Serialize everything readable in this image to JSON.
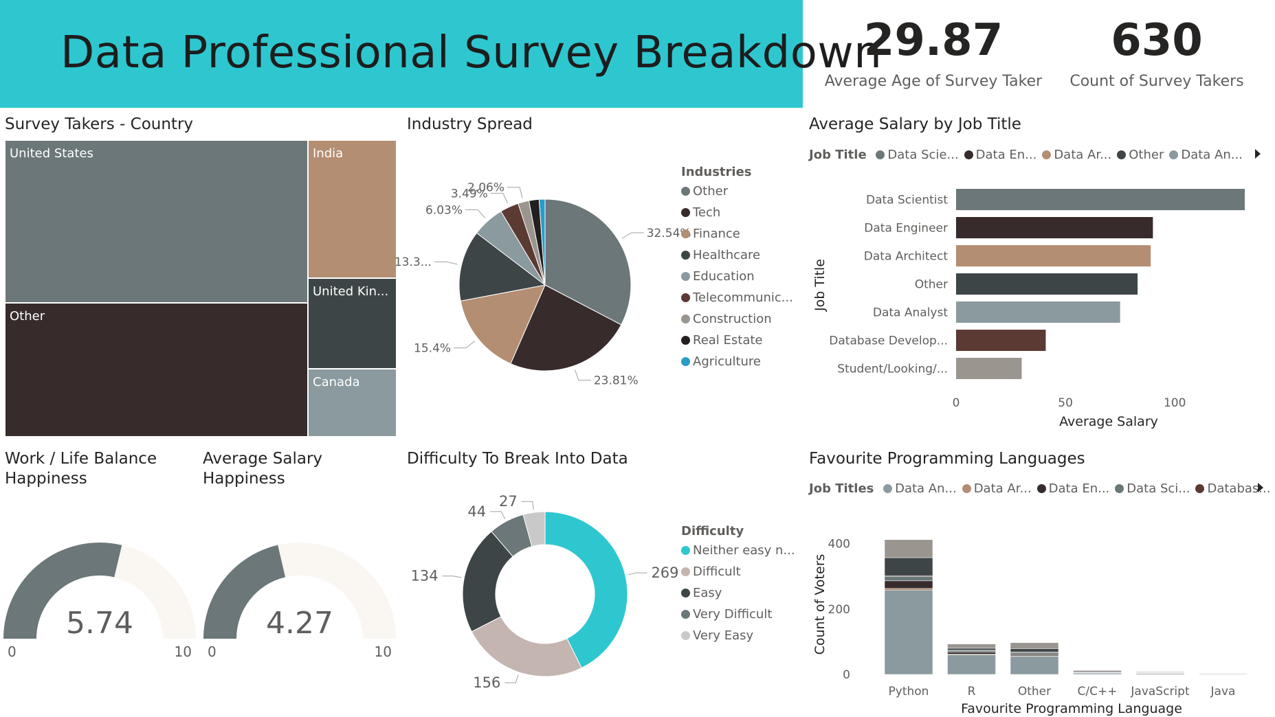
{
  "header": {
    "title": "Data Professional Survey Breakdown"
  },
  "kpis": {
    "avg_age": {
      "value": "29.87",
      "label": "Average Age of Survey Taker"
    },
    "count": {
      "value": "630",
      "label": "Count of Survey Takers"
    }
  },
  "colors": {
    "slate": "#6b7778",
    "dark": "#372b2b",
    "tan": "#b48e72",
    "charcoal": "#3d4547",
    "bluegrey": "#8a9a9e",
    "brown": "#5b3a33",
    "grey": "#9b9590",
    "black": "#231f20",
    "teal": "#2ec7d0",
    "lightpink": "#c4b5b1",
    "lightgrey": "#c9c9c9",
    "cream": "#faf6f1"
  },
  "country": {
    "title": "Survey Takers - Country",
    "cells": [
      {
        "label": "United States",
        "color": "#6b7778"
      },
      {
        "label": "Other",
        "color": "#372b2b"
      },
      {
        "label": "India",
        "color": "#b48e72"
      },
      {
        "label": "United Kin...",
        "color": "#3d4547"
      },
      {
        "label": "Canada",
        "color": "#8a9a9e"
      }
    ]
  },
  "industry": {
    "title": "Industry Spread",
    "legend_title": "Industries",
    "items": [
      {
        "label": "Other",
        "color": "#6b7778"
      },
      {
        "label": "Tech",
        "color": "#372b2b"
      },
      {
        "label": "Finance",
        "color": "#b48e72"
      },
      {
        "label": "Healthcare",
        "color": "#3d4547"
      },
      {
        "label": "Education",
        "color": "#8a9a9e"
      },
      {
        "label": "Telecommunic...",
        "color": "#5b3a33"
      },
      {
        "label": "Construction",
        "color": "#9b9590"
      },
      {
        "label": "Real Estate",
        "color": "#231f20"
      },
      {
        "label": "Agriculture",
        "color": "#2a9cc6"
      }
    ]
  },
  "salary_by_job": {
    "title": "Average Salary by Job Title",
    "legend_title": "Job Title",
    "legend": [
      {
        "label": "Data Scie...",
        "color": "#6b7778"
      },
      {
        "label": "Data En...",
        "color": "#372b2b"
      },
      {
        "label": "Data Ar...",
        "color": "#b48e72"
      },
      {
        "label": "Other",
        "color": "#3d4547"
      },
      {
        "label": "Data An...",
        "color": "#8a9a9e"
      }
    ],
    "ylabel": "Job Title",
    "xlabel": "Average Salary"
  },
  "wlb": {
    "title_line1": "Work / Life Balance",
    "title_line2": "Happiness",
    "value": "5.74",
    "min": "0",
    "max": "10"
  },
  "salary_happy": {
    "title_line1": "Average Salary",
    "title_line2": "Happiness",
    "value": "4.27",
    "min": "0",
    "max": "10"
  },
  "difficulty": {
    "title": "Difficulty To Break Into Data",
    "legend_title": "Difficulty",
    "items": [
      {
        "label": "Neither easy n...",
        "color": "#2ec7d0"
      },
      {
        "label": "Difficult",
        "color": "#c4b5b1"
      },
      {
        "label": "Easy",
        "color": "#3d4547"
      },
      {
        "label": "Very Difficult",
        "color": "#6b7778"
      },
      {
        "label": "Very Easy",
        "color": "#c9c9c9"
      }
    ]
  },
  "languages": {
    "title": "Favourite Programming Languages",
    "legend_title": "Job Titles",
    "legend": [
      {
        "label": "Data An...",
        "color": "#8a9a9e"
      },
      {
        "label": "Data Ar...",
        "color": "#b48e72"
      },
      {
        "label": "Data En...",
        "color": "#372b2b"
      },
      {
        "label": "Data Sci...",
        "color": "#6b7778"
      },
      {
        "label": "Databas...",
        "color": "#5b3a33"
      }
    ],
    "ylabel": "Count of Voters",
    "xlabel": "Favourite Programming Language"
  },
  "chart_data": [
    {
      "type": "treemap",
      "title": "Survey Takers - Country",
      "categories": [
        "United States",
        "Other",
        "India",
        "United Kin...",
        "Canada"
      ],
      "values": [
        262,
        260,
        39,
        32,
        37
      ]
    },
    {
      "type": "pie",
      "title": "Industry Spread",
      "categories": [
        "Other",
        "Tech",
        "Finance",
        "Healthcare",
        "Education",
        "Telecommunic...",
        "Construction",
        "Real Estate",
        "Agriculture"
      ],
      "values": [
        32.54,
        23.81,
        15.4,
        13.3,
        6.03,
        3.49,
        2.06,
        1.9,
        1.1
      ],
      "labels": [
        "32.54%",
        "23.81%",
        "15.4%",
        "13.3...",
        "6.03%",
        "3.49%",
        "2.06%",
        "",
        ""
      ]
    },
    {
      "type": "bar",
      "orientation": "horizontal",
      "title": "Average Salary by Job Title",
      "categories": [
        "Data Scientist",
        "Data Engineer",
        "Data Architect",
        "Other",
        "Data Analyst",
        "Database Develop...",
        "Student/Looking/..."
      ],
      "values": [
        132,
        90,
        89,
        83,
        75,
        41,
        30
      ],
      "colors": [
        "#6b7778",
        "#372b2b",
        "#b48e72",
        "#3d4547",
        "#8a9a9e",
        "#5b3a33",
        "#9b9590"
      ],
      "xlabel": "Average Salary",
      "ylabel": "Job Title",
      "xticks": [
        0,
        50,
        100
      ],
      "xlim": [
        0,
        132
      ]
    },
    {
      "type": "gauge",
      "title": "Work / Life Balance Happiness",
      "value": 5.74,
      "min": 0,
      "max": 10
    },
    {
      "type": "gauge",
      "title": "Average Salary Happiness",
      "value": 4.27,
      "min": 0,
      "max": 10
    },
    {
      "type": "donut",
      "title": "Difficulty To Break Into Data",
      "categories": [
        "Neither easy n...",
        "Difficult",
        "Easy",
        "Very Difficult",
        "Very Easy"
      ],
      "values": [
        269,
        156,
        134,
        44,
        27
      ]
    },
    {
      "type": "bar",
      "stacked": true,
      "title": "Favourite Programming Languages",
      "categories": [
        "Python",
        "R",
        "Other",
        "C/C++",
        "JavaScript",
        "Java"
      ],
      "series": [
        {
          "name": "Data An...",
          "values": [
            258,
            60,
            55,
            4,
            3,
            2
          ]
        },
        {
          "name": "Data Ar...",
          "values": [
            5,
            2,
            2,
            0,
            0,
            0
          ]
        },
        {
          "name": "Data En...",
          "values": [
            23,
            6,
            4,
            1,
            0,
            0
          ]
        },
        {
          "name": "Data Sci...",
          "values": [
            14,
            5,
            6,
            1,
            1,
            0
          ]
        },
        {
          "name": "Databas...",
          "values": [
            2,
            1,
            2,
            0,
            1,
            0
          ]
        },
        {
          "name": "",
          "values": [
            55,
            6,
            10,
            2,
            1,
            1
          ]
        },
        {
          "name": "",
          "values": [
            55,
            13,
            18,
            4,
            2,
            0
          ]
        }
      ],
      "ylabel": "Count of Voters",
      "xlabel": "Favourite Programming Language",
      "yticks": [
        0,
        200,
        400
      ],
      "ylim": [
        0,
        420
      ]
    }
  ]
}
